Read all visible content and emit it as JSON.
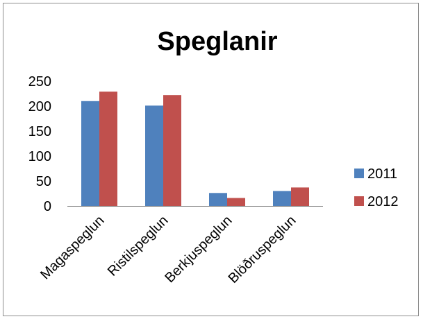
{
  "chart_data": {
    "type": "bar",
    "title": "Speglanir",
    "xlabel": "",
    "ylabel": "",
    "categories": [
      "Magaspeglun",
      "Ristilspeglun",
      "Berkjuspeglun",
      "Blöðruspeglun"
    ],
    "series": [
      {
        "name": "2011",
        "values": [
          210,
          201,
          26,
          30
        ],
        "color": "#4f81bd"
      },
      {
        "name": "2012",
        "values": [
          229,
          222,
          16,
          37
        ],
        "color": "#c0504d"
      }
    ],
    "ylim": [
      0,
      250
    ],
    "yticks": [
      0,
      50,
      100,
      150,
      200,
      250
    ],
    "grid": false,
    "legend_position": "right"
  }
}
